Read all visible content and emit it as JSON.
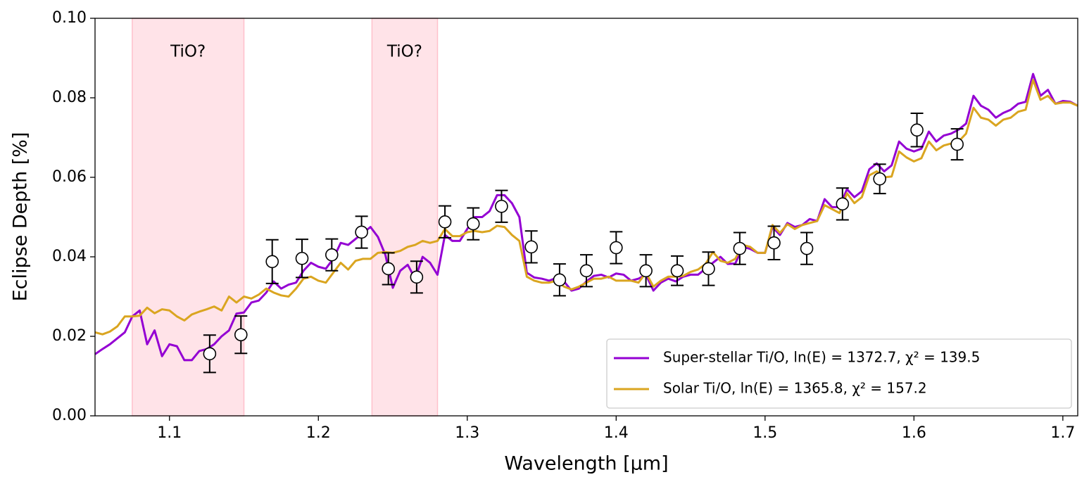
{
  "chart_data": {
    "type": "line",
    "xlabel": "Wavelength [μm]",
    "ylabel": "Eclipse Depth [%]",
    "xlim": [
      1.05,
      1.71
    ],
    "ylim": [
      0,
      0.1
    ],
    "xticks": [
      1.1,
      1.2,
      1.3,
      1.4,
      1.5,
      1.6,
      1.7
    ],
    "yticks": [
      {
        "value": 0,
        "label": "0.00"
      },
      {
        "value": 0.02,
        "label": "0.02"
      },
      {
        "value": 0.04,
        "label": "0.04"
      },
      {
        "value": 0.06,
        "label": "0.06"
      },
      {
        "value": 0.08,
        "label": "0.08"
      },
      {
        "value": 0.1,
        "label": "0.10"
      }
    ],
    "grid": false,
    "legend": "lower right",
    "spans": [
      {
        "range": [
          1.075,
          1.15
        ],
        "label": "TiO?",
        "color": "#ffc0cb"
      },
      {
        "range": [
          1.236,
          1.28
        ],
        "label": "TiO?",
        "color": "#ffc0cb"
      }
    ],
    "x": [
      1.05,
      1.055,
      1.06,
      1.065,
      1.07,
      1.075,
      1.08,
      1.085,
      1.09,
      1.095,
      1.1,
      1.105,
      1.11,
      1.115,
      1.12,
      1.125,
      1.13,
      1.135,
      1.14,
      1.145,
      1.15,
      1.155,
      1.16,
      1.165,
      1.17,
      1.175,
      1.18,
      1.185,
      1.19,
      1.195,
      1.2,
      1.205,
      1.21,
      1.215,
      1.22,
      1.225,
      1.23,
      1.235,
      1.24,
      1.245,
      1.25,
      1.255,
      1.26,
      1.265,
      1.27,
      1.275,
      1.28,
      1.285,
      1.29,
      1.295,
      1.3,
      1.305,
      1.31,
      1.315,
      1.32,
      1.325,
      1.33,
      1.335,
      1.34,
      1.345,
      1.35,
      1.355,
      1.36,
      1.365,
      1.37,
      1.375,
      1.38,
      1.385,
      1.39,
      1.395,
      1.4,
      1.405,
      1.41,
      1.415,
      1.42,
      1.425,
      1.43,
      1.435,
      1.44,
      1.445,
      1.45,
      1.455,
      1.46,
      1.465,
      1.47,
      1.475,
      1.48,
      1.485,
      1.49,
      1.495,
      1.5,
      1.505,
      1.51,
      1.515,
      1.52,
      1.525,
      1.53,
      1.535,
      1.54,
      1.545,
      1.55,
      1.555,
      1.56,
      1.565,
      1.57,
      1.575,
      1.58,
      1.585,
      1.59,
      1.595,
      1.6,
      1.605,
      1.61,
      1.615,
      1.62,
      1.625,
      1.63,
      1.635,
      1.64,
      1.645,
      1.65,
      1.655,
      1.66,
      1.665,
      1.67,
      1.675,
      1.68,
      1.685,
      1.69,
      1.695,
      1.7,
      1.705,
      1.71
    ],
    "series": [
      {
        "name": "Super-stellar Ti/O, ln(E) = 1372.7, χ² = 139.5",
        "color": "#9400d3",
        "values": [
          0.0155,
          0.0168,
          0.018,
          0.0195,
          0.021,
          0.025,
          0.0265,
          0.018,
          0.0215,
          0.015,
          0.018,
          0.0175,
          0.014,
          0.014,
          0.0163,
          0.0168,
          0.018,
          0.02,
          0.0215,
          0.0257,
          0.026,
          0.0285,
          0.029,
          0.031,
          0.0338,
          0.032,
          0.033,
          0.0335,
          0.0365,
          0.0385,
          0.0375,
          0.037,
          0.0395,
          0.0435,
          0.043,
          0.0445,
          0.046,
          0.0475,
          0.045,
          0.0405,
          0.0322,
          0.0365,
          0.038,
          0.0345,
          0.04,
          0.0385,
          0.0355,
          0.0455,
          0.044,
          0.044,
          0.047,
          0.05,
          0.05,
          0.0515,
          0.0555,
          0.0555,
          0.0535,
          0.05,
          0.036,
          0.0348,
          0.0345,
          0.034,
          0.0347,
          0.0338,
          0.0315,
          0.032,
          0.0338,
          0.0352,
          0.0355,
          0.0348,
          0.0358,
          0.0355,
          0.034,
          0.0345,
          0.0355,
          0.0315,
          0.0335,
          0.0345,
          0.0338,
          0.035,
          0.0355,
          0.0355,
          0.037,
          0.0385,
          0.04,
          0.0382,
          0.0383,
          0.0425,
          0.042,
          0.041,
          0.041,
          0.0475,
          0.0455,
          0.0485,
          0.0475,
          0.048,
          0.0495,
          0.049,
          0.0545,
          0.0525,
          0.0525,
          0.057,
          0.055,
          0.0565,
          0.062,
          0.0635,
          0.0615,
          0.063,
          0.069,
          0.0672,
          0.0665,
          0.0672,
          0.0715,
          0.069,
          0.0705,
          0.071,
          0.072,
          0.0735,
          0.0805,
          0.078,
          0.077,
          0.075,
          0.0762,
          0.077,
          0.0785,
          0.079,
          0.086,
          0.0805,
          0.082,
          0.0785,
          0.0792,
          0.079,
          0.078
        ]
      },
      {
        "name": "Solar Ti/O, ln(E) = 1365.8, χ² = 157.2",
        "color": "#daa520",
        "values": [
          0.021,
          0.0205,
          0.0212,
          0.0225,
          0.025,
          0.025,
          0.0252,
          0.0272,
          0.0258,
          0.0268,
          0.0265,
          0.025,
          0.024,
          0.0255,
          0.0262,
          0.0268,
          0.0275,
          0.0265,
          0.03,
          0.0285,
          0.03,
          0.0295,
          0.0305,
          0.032,
          0.031,
          0.0303,
          0.03,
          0.032,
          0.0345,
          0.035,
          0.034,
          0.0335,
          0.036,
          0.0385,
          0.0368,
          0.039,
          0.0395,
          0.0395,
          0.041,
          0.0412,
          0.041,
          0.0415,
          0.0425,
          0.043,
          0.044,
          0.0435,
          0.044,
          0.047,
          0.0452,
          0.0452,
          0.0462,
          0.0465,
          0.0462,
          0.0465,
          0.0478,
          0.0475,
          0.0455,
          0.044,
          0.035,
          0.034,
          0.0335,
          0.0335,
          0.034,
          0.0325,
          0.0318,
          0.0325,
          0.0335,
          0.0345,
          0.0345,
          0.035,
          0.034,
          0.034,
          0.034,
          0.0335,
          0.036,
          0.0325,
          0.034,
          0.035,
          0.035,
          0.0352,
          0.0362,
          0.0368,
          0.0382,
          0.0412,
          0.039,
          0.0385,
          0.0395,
          0.043,
          0.0425,
          0.041,
          0.041,
          0.048,
          0.046,
          0.0482,
          0.047,
          0.048,
          0.0485,
          0.049,
          0.053,
          0.052,
          0.051,
          0.056,
          0.0535,
          0.055,
          0.0605,
          0.0615,
          0.06,
          0.0602,
          0.0665,
          0.065,
          0.064,
          0.0648,
          0.069,
          0.0668,
          0.068,
          0.0685,
          0.069,
          0.071,
          0.0775,
          0.075,
          0.0745,
          0.073,
          0.0745,
          0.075,
          0.0765,
          0.077,
          0.0845,
          0.0795,
          0.0805,
          0.0785,
          0.0788,
          0.0788,
          0.078
        ]
      }
    ],
    "observations": {
      "color": "#000000",
      "x": [
        1.127,
        1.148,
        1.169,
        1.189,
        1.209,
        1.229,
        1.247,
        1.266,
        1.285,
        1.304,
        1.323,
        1.343,
        1.362,
        1.38,
        1.4,
        1.42,
        1.441,
        1.462,
        1.483,
        1.506,
        1.528,
        1.552,
        1.577,
        1.602,
        1.629
      ],
      "values": [
        0.0156,
        0.0204,
        0.0388,
        0.0396,
        0.0405,
        0.0462,
        0.037,
        0.0349,
        0.0488,
        0.0483,
        0.0527,
        0.0425,
        0.0342,
        0.0365,
        0.0423,
        0.0365,
        0.0365,
        0.037,
        0.0421,
        0.0435,
        0.0421,
        0.0533,
        0.0596,
        0.0719,
        0.0683
      ],
      "errors": [
        0.0047,
        0.0047,
        0.0055,
        0.0048,
        0.004,
        0.004,
        0.004,
        0.004,
        0.004,
        0.004,
        0.004,
        0.004,
        0.004,
        0.004,
        0.004,
        0.004,
        0.0037,
        0.0042,
        0.004,
        0.0042,
        0.004,
        0.004,
        0.0037,
        0.0042,
        0.0039
      ]
    }
  }
}
